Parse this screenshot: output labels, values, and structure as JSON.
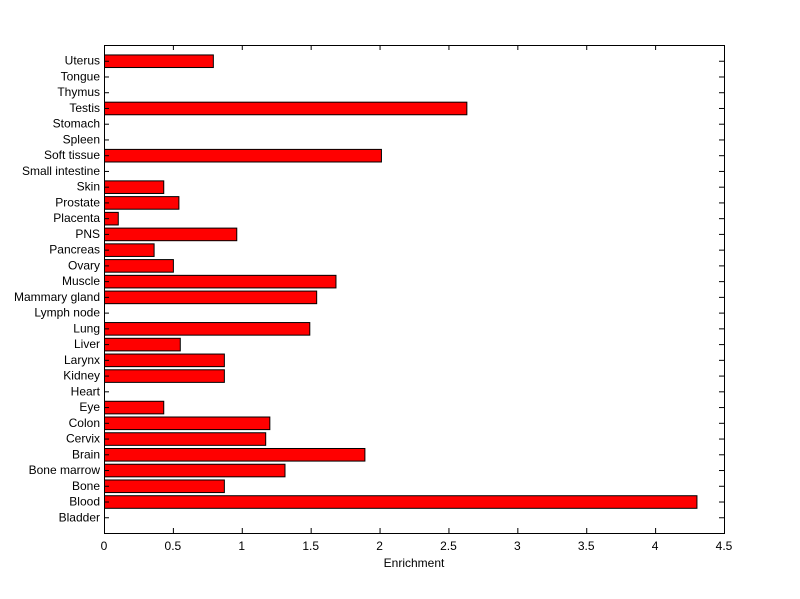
{
  "chart_data": {
    "type": "bar",
    "orientation": "horizontal",
    "title": "",
    "xlabel": "Enrichment",
    "ylabel": "",
    "xlim": [
      0,
      4.5
    ],
    "xticks": [
      0,
      0.5,
      1,
      1.5,
      2,
      2.5,
      3,
      3.5,
      4,
      4.5
    ],
    "xtick_labels": [
      "0",
      "0.5",
      "1",
      "1.5",
      "2",
      "2.5",
      "3",
      "3.5",
      "4",
      "4.5"
    ],
    "grid": false,
    "legend": "none",
    "bar_color": "#ff0000",
    "bar_edge_color": "#000000",
    "categories": [
      "Bladder",
      "Blood",
      "Bone",
      "Bone marrow",
      "Brain",
      "Cervix",
      "Colon",
      "Eye",
      "Heart",
      "Kidney",
      "Larynx",
      "Liver",
      "Lung",
      "Lymph node",
      "Mammary gland",
      "Muscle",
      "Ovary",
      "Pancreas",
      "PNS",
      "Placenta",
      "Prostate",
      "Skin",
      "Small intestine",
      "Soft tissue",
      "Spleen",
      "Stomach",
      "Testis",
      "Thymus",
      "Tongue",
      "Uterus"
    ],
    "values": [
      0,
      4.3,
      0.87,
      1.31,
      1.89,
      1.17,
      1.2,
      0.43,
      0,
      0.87,
      0.87,
      0.55,
      1.49,
      0,
      1.54,
      1.68,
      0.5,
      0.36,
      0.96,
      0.1,
      0.54,
      0.43,
      0,
      2.01,
      0,
      0,
      2.63,
      0,
      0,
      0.79
    ]
  }
}
